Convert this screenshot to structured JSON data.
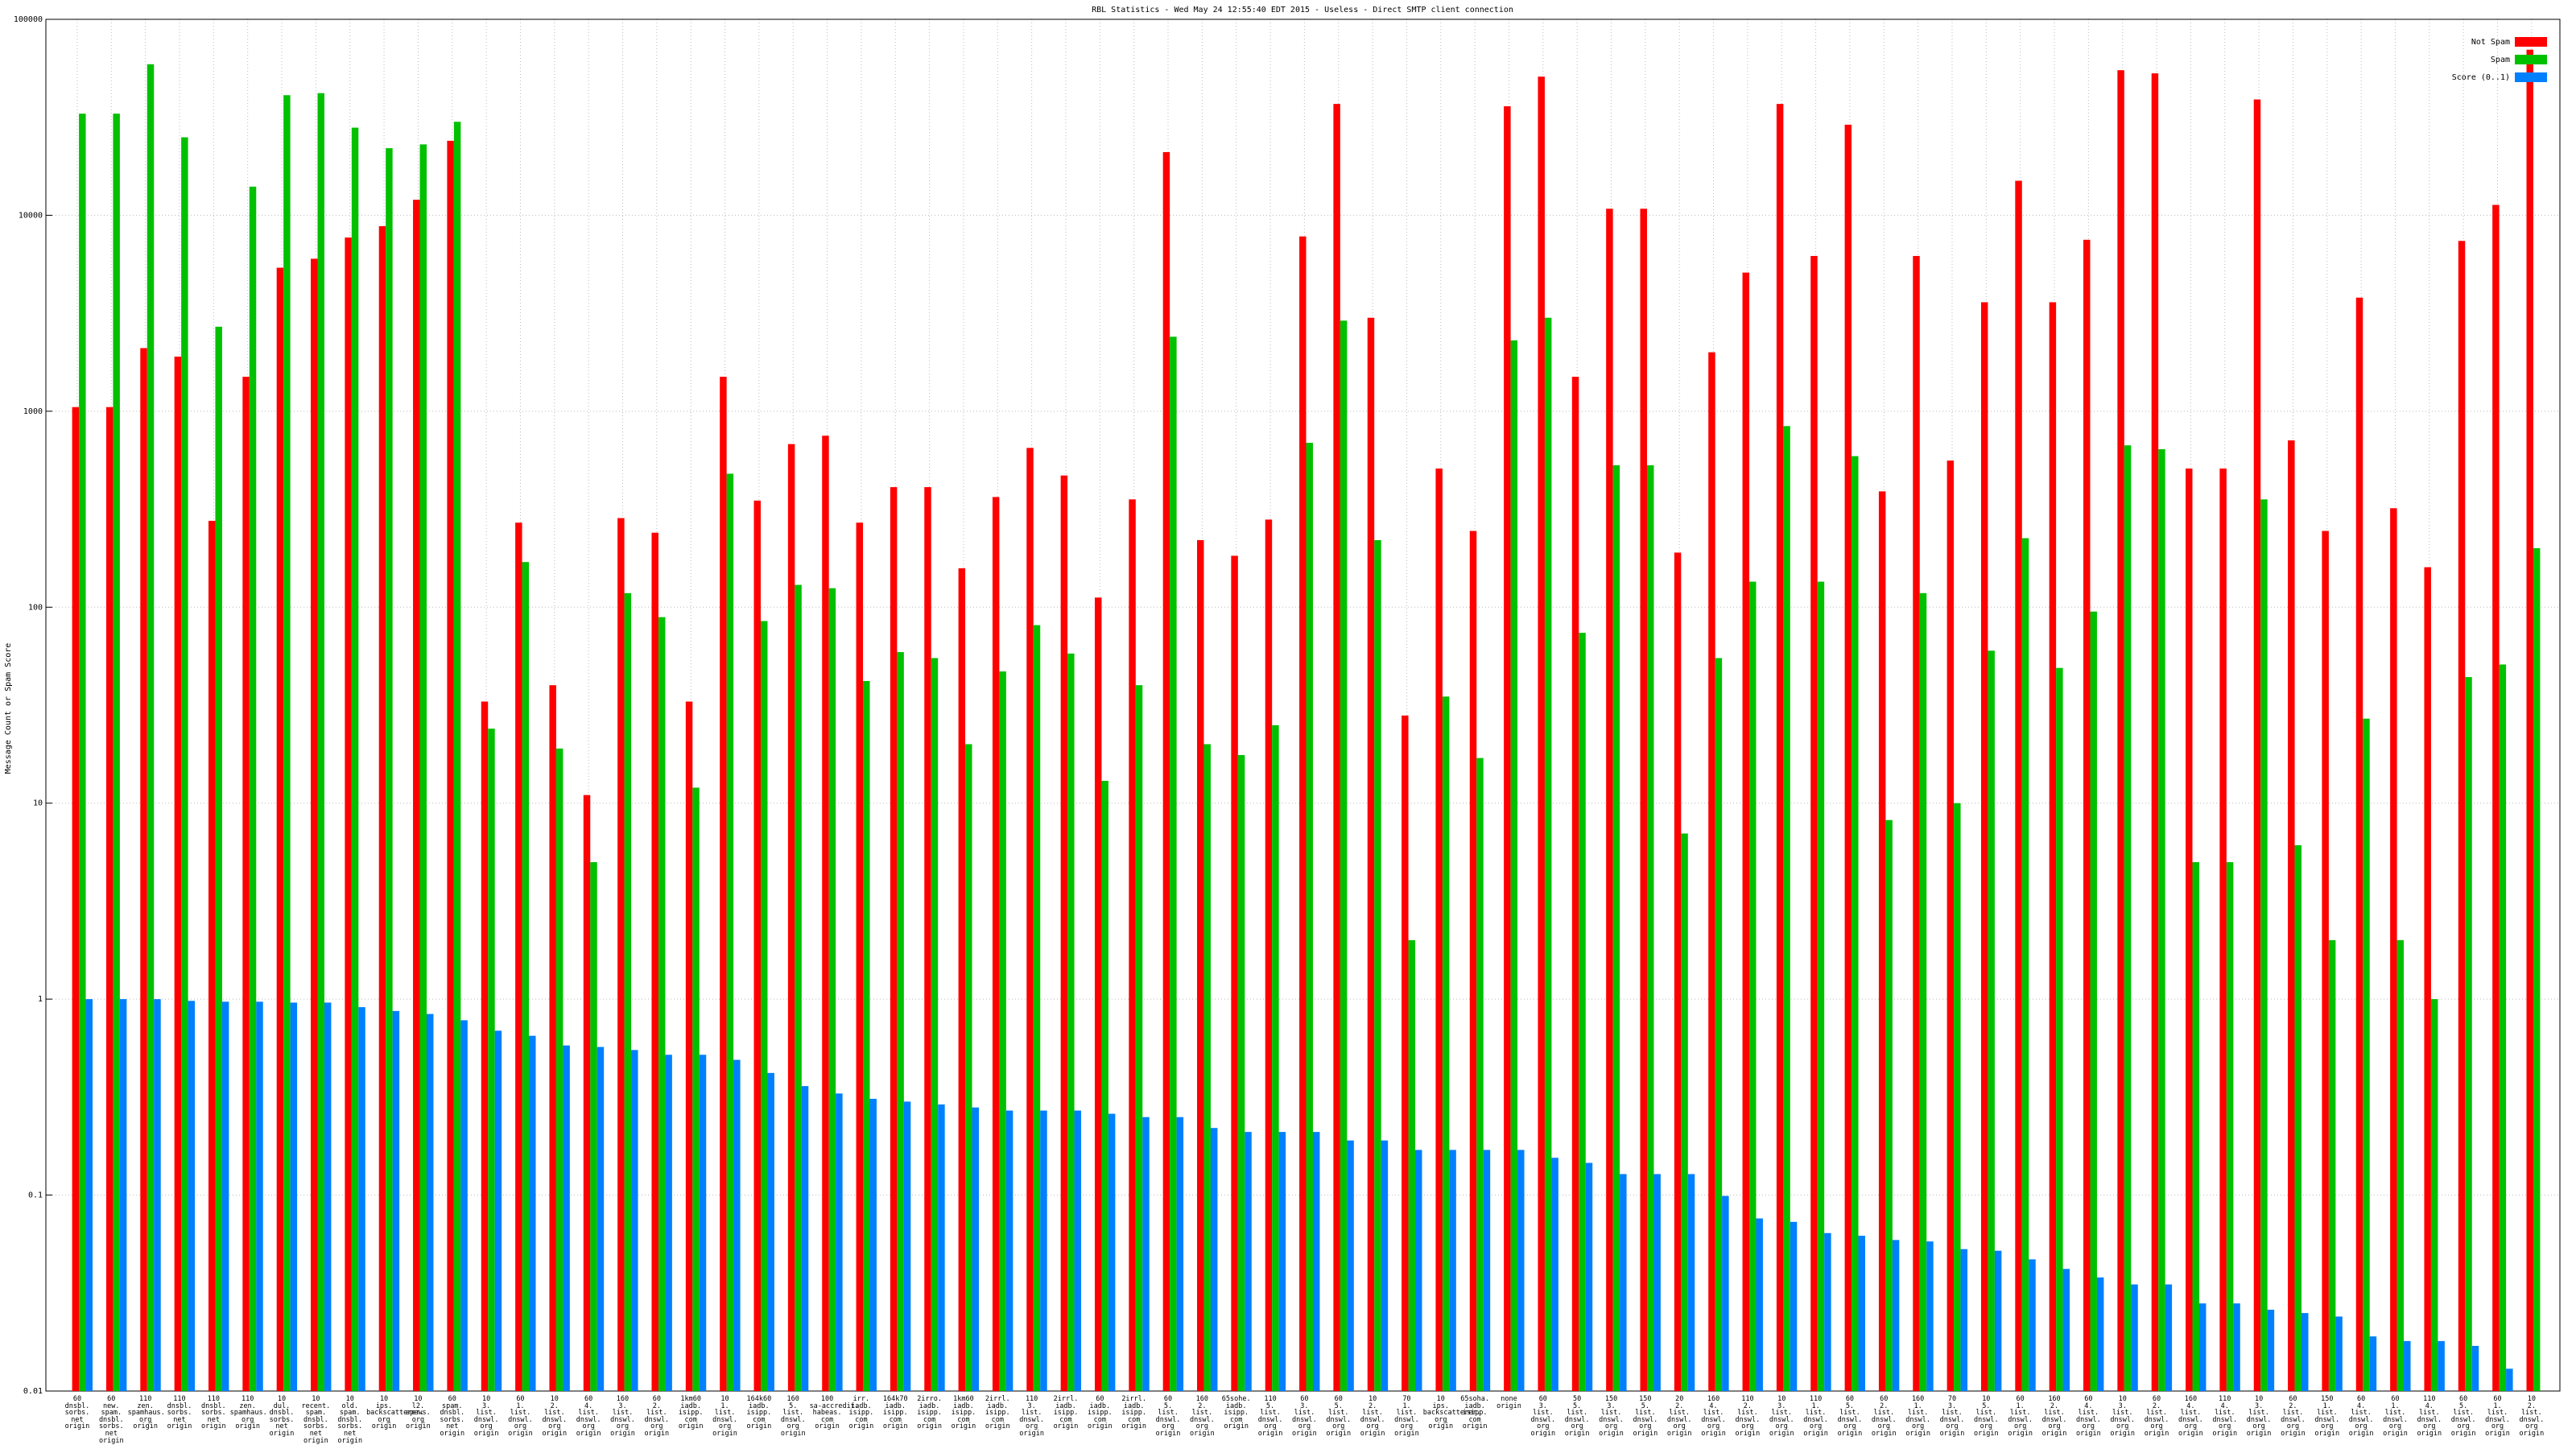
{
  "chart_data": {
    "type": "bar",
    "title": "RBL Statistics - Wed May 24 12:55:40 EDT 2015 - Useless - Direct SMTP client connection",
    "y_label": "Message Count or Spam Score",
    "log_scale": true,
    "grid": true,
    "legend": "top-right",
    "ylim": [
      0.01,
      100000
    ],
    "yticks": [
      0.01,
      0.1,
      1,
      10,
      100,
      1000,
      10000,
      100000
    ],
    "categories": [
      "60\ndnsbl.\nsorbs.\nnet\norigin",
      "60\nnew.\nspam.\ndnsbl.\nsorbs.\nnet\norigin",
      "110\nzen.\nspamhaus.\norg\norigin",
      "110\ndnsbl.\nsorbs.\nnet\norigin",
      "110\ndnsbl.\nsorbs.\nnet\norigin",
      "110\nzen.\nspamhaus.\norg\norigin",
      "10\ndul.\ndnsbl.\nsorbs.\nnet\norigin",
      "10\nrecent.\nspam.\ndnsbl.\nsorbs.\nnet\norigin",
      "10\nold.\nspam.\ndnsbl.\nsorbs.\nnet\norigin",
      "10\nips.\nbackscatterer.\norg\norigin",
      "10\nl2.\napews.\norg\norigin",
      "60\nspam.\ndnsbl.\nsorbs.\nnet\norigin",
      "10\n3.\nlist.\ndnswl.\norg\norigin",
      "60\n1.\nlist.\ndnswl.\norg\norigin",
      "10\n2.\nlist.\ndnswl.\norg\norigin",
      "60\n4.\nlist.\ndnswl.\norg\norigin",
      "160\n3.\nlist.\ndnswl.\norg\norigin",
      "60\n2.\nlist.\ndnswl.\norg\norigin",
      "1km60\niadb.\nisipp.\ncom\norigin",
      "10\n1.\nlist.\ndnswl.\norg\norigin",
      "164k60\niadb.\nisipp.\ncom\norigin",
      "160\n5.\nlist.\ndnswl.\norg\norigin",
      "100\nsa-accredit.\nhabeas.\ncom\norigin",
      "irr.\niadb.\nisipp.\ncom\norigin",
      "164k70\niadb.\nisipp.\ncom\norigin",
      "2irro.\niadb.\nisipp.\ncom\norigin",
      "1km60\niadb.\nisipp.\ncom\norigin",
      "2irrl.\niadb.\nisipp.\ncom\norigin",
      "110\n3.\nlist.\ndnswl.\norg\norigin",
      "2irrl.\niadb.\nisipp.\ncom\norigin",
      "60\niadb.\nisipp.\ncom\norigin",
      "2irrl.\niadb.\nisipp.\ncom\norigin",
      "60\n5.\nlist.\ndnswl.\norg\norigin",
      "160\n2.\nlist.\ndnswl.\norg\norigin",
      "65sohe.\niadb.\nisipp.\ncom\norigin",
      "110\n5.\nlist.\ndnswl.\norg\norigin",
      "60\n3.\nlist.\ndnswl.\norg\norigin",
      "60\n5.\nlist.\ndnswl.\norg\norigin",
      "10\n2.\nlist.\ndnswl.\norg\norigin",
      "70\n1.\nlist.\ndnswl.\norg\norigin",
      "10\nips.\nbackscatterer.\norg\norigin",
      "65soha.\niadb.\nisipp.\ncom\norigin",
      "none\norigin",
      "60\n3.\nlist.\ndnswl.\norg\norigin",
      "50\n5.\nlist.\ndnswl.\norg\norigin",
      "150\n3.\nlist.\ndnswl.\norg\norigin",
      "150\n5.\nlist.\ndnswl.\norg\norigin",
      "20\n2.\nlist.\ndnswl.\norg\norigin",
      "160\n4.\nlist.\ndnswl.\norg\norigin",
      "110\n2.\nlist.\ndnswl.\norg\norigin",
      "10\n3.\nlist.\ndnswl.\norg\norigin",
      "110\n1.\nlist.\ndnswl.\norg\norigin",
      "60\n5.\nlist.\ndnswl.\norg\norigin",
      "60\n2.\nlist.\ndnswl.\norg\norigin",
      "160\n1.\nlist.\ndnswl.\norg\norigin",
      "70\n3.\nlist.\ndnswl.\norg\norigin",
      "10\n5.\nlist.\ndnswl.\norg\norigin",
      "60\n1.\nlist.\ndnswl.\norg\norigin",
      "160\n2.\nlist.\ndnswl.\norg\norigin",
      "60\n4.\nlist.\ndnswl.\norg\norigin",
      "10\n3.\nlist.\ndnswl.\norg\norigin",
      "60\n2.\nlist.\ndnswl.\norg\norigin",
      "160\n4.\nlist.\ndnswl.\norg\norigin",
      "110\n4.\nlist.\ndnswl.\norg\norigin",
      "10\n3.\nlist.\ndnswl.\norg\norigin",
      "60\n2.\nlist.\ndnswl.\norg\norigin",
      "150\n1.\nlist.\ndnswl.\norg\norigin",
      "60\n4.\nlist.\ndnswl.\norg\norigin",
      "60\n1.\nlist.\ndnswl.\norg\norigin",
      "110\n4.\nlist.\ndnswl.\norg\norigin",
      "60\n5.\nlist.\ndnswl.\norg\norigin",
      "60\n1.\nlist.\ndnswl.\norg\norigin",
      "10\n2.\nlist.\ndnswl.\norg\norigin"
    ],
    "series": [
      {
        "name": "Not Spam",
        "color": "#ff0000",
        "values": [
          1050,
          1050,
          2100,
          1900,
          276,
          1500,
          5400,
          6000,
          7700,
          8800,
          12000,
          24000,
          33,
          270,
          40,
          11,
          285,
          240,
          33,
          1500,
          350,
          680,
          750,
          270,
          410,
          410,
          158,
          365,
          650,
          470,
          112,
          355,
          21000,
          220,
          183,
          280,
          7800,
          37000,
          3000,
          28,
          510,
          245,
          36000,
          51000,
          1500,
          10800,
          10800,
          190,
          2000,
          5100,
          37000,
          6200,
          29000,
          390,
          6200,
          560,
          3600,
          15000,
          3600,
          7500,
          55000,
          53000,
          510,
          510,
          39000,
          710,
          245,
          3800,
          320,
          160,
          7400,
          11300,
          70000
        ]
      },
      {
        "name": "Spam",
        "color": "#00c000",
        "values": [
          33000,
          33000,
          59000,
          25000,
          2700,
          14000,
          41000,
          42000,
          28000,
          22000,
          23000,
          30000,
          24,
          170,
          19,
          5,
          118,
          89,
          12,
          480,
          85,
          130,
          125,
          42,
          59,
          55,
          20,
          47,
          81,
          58,
          13,
          40,
          2400,
          20,
          17.6,
          25,
          690,
          2900,
          220,
          2,
          35,
          17,
          2300,
          3000,
          74,
          530,
          530,
          7,
          55,
          135,
          840,
          135,
          590,
          8.2,
          118,
          10,
          60,
          225,
          49,
          95,
          670,
          640,
          5,
          5,
          355,
          6.1,
          2,
          27,
          2,
          1,
          44,
          51,
          200
        ]
      },
      {
        "name": "Score (0..1)",
        "color": "#0080ff",
        "values": [
          1.0,
          1.0,
          1.0,
          0.98,
          0.97,
          0.97,
          0.96,
          0.96,
          0.91,
          0.87,
          0.84,
          0.78,
          0.69,
          0.65,
          0.58,
          0.57,
          0.55,
          0.52,
          0.52,
          0.49,
          0.42,
          0.36,
          0.33,
          0.31,
          0.3,
          0.29,
          0.28,
          0.27,
          0.27,
          0.27,
          0.26,
          0.25,
          0.25,
          0.22,
          0.21,
          0.21,
          0.21,
          0.19,
          0.19,
          0.17,
          0.17,
          0.17,
          0.17,
          0.155,
          0.146,
          0.128,
          0.128,
          0.128,
          0.099,
          0.076,
          0.073,
          0.064,
          0.062,
          0.059,
          0.058,
          0.053,
          0.052,
          0.047,
          0.042,
          0.038,
          0.035,
          0.035,
          0.028,
          0.028,
          0.026,
          0.025,
          0.024,
          0.019,
          0.018,
          0.018,
          0.017,
          0.013,
          null
        ]
      }
    ]
  }
}
